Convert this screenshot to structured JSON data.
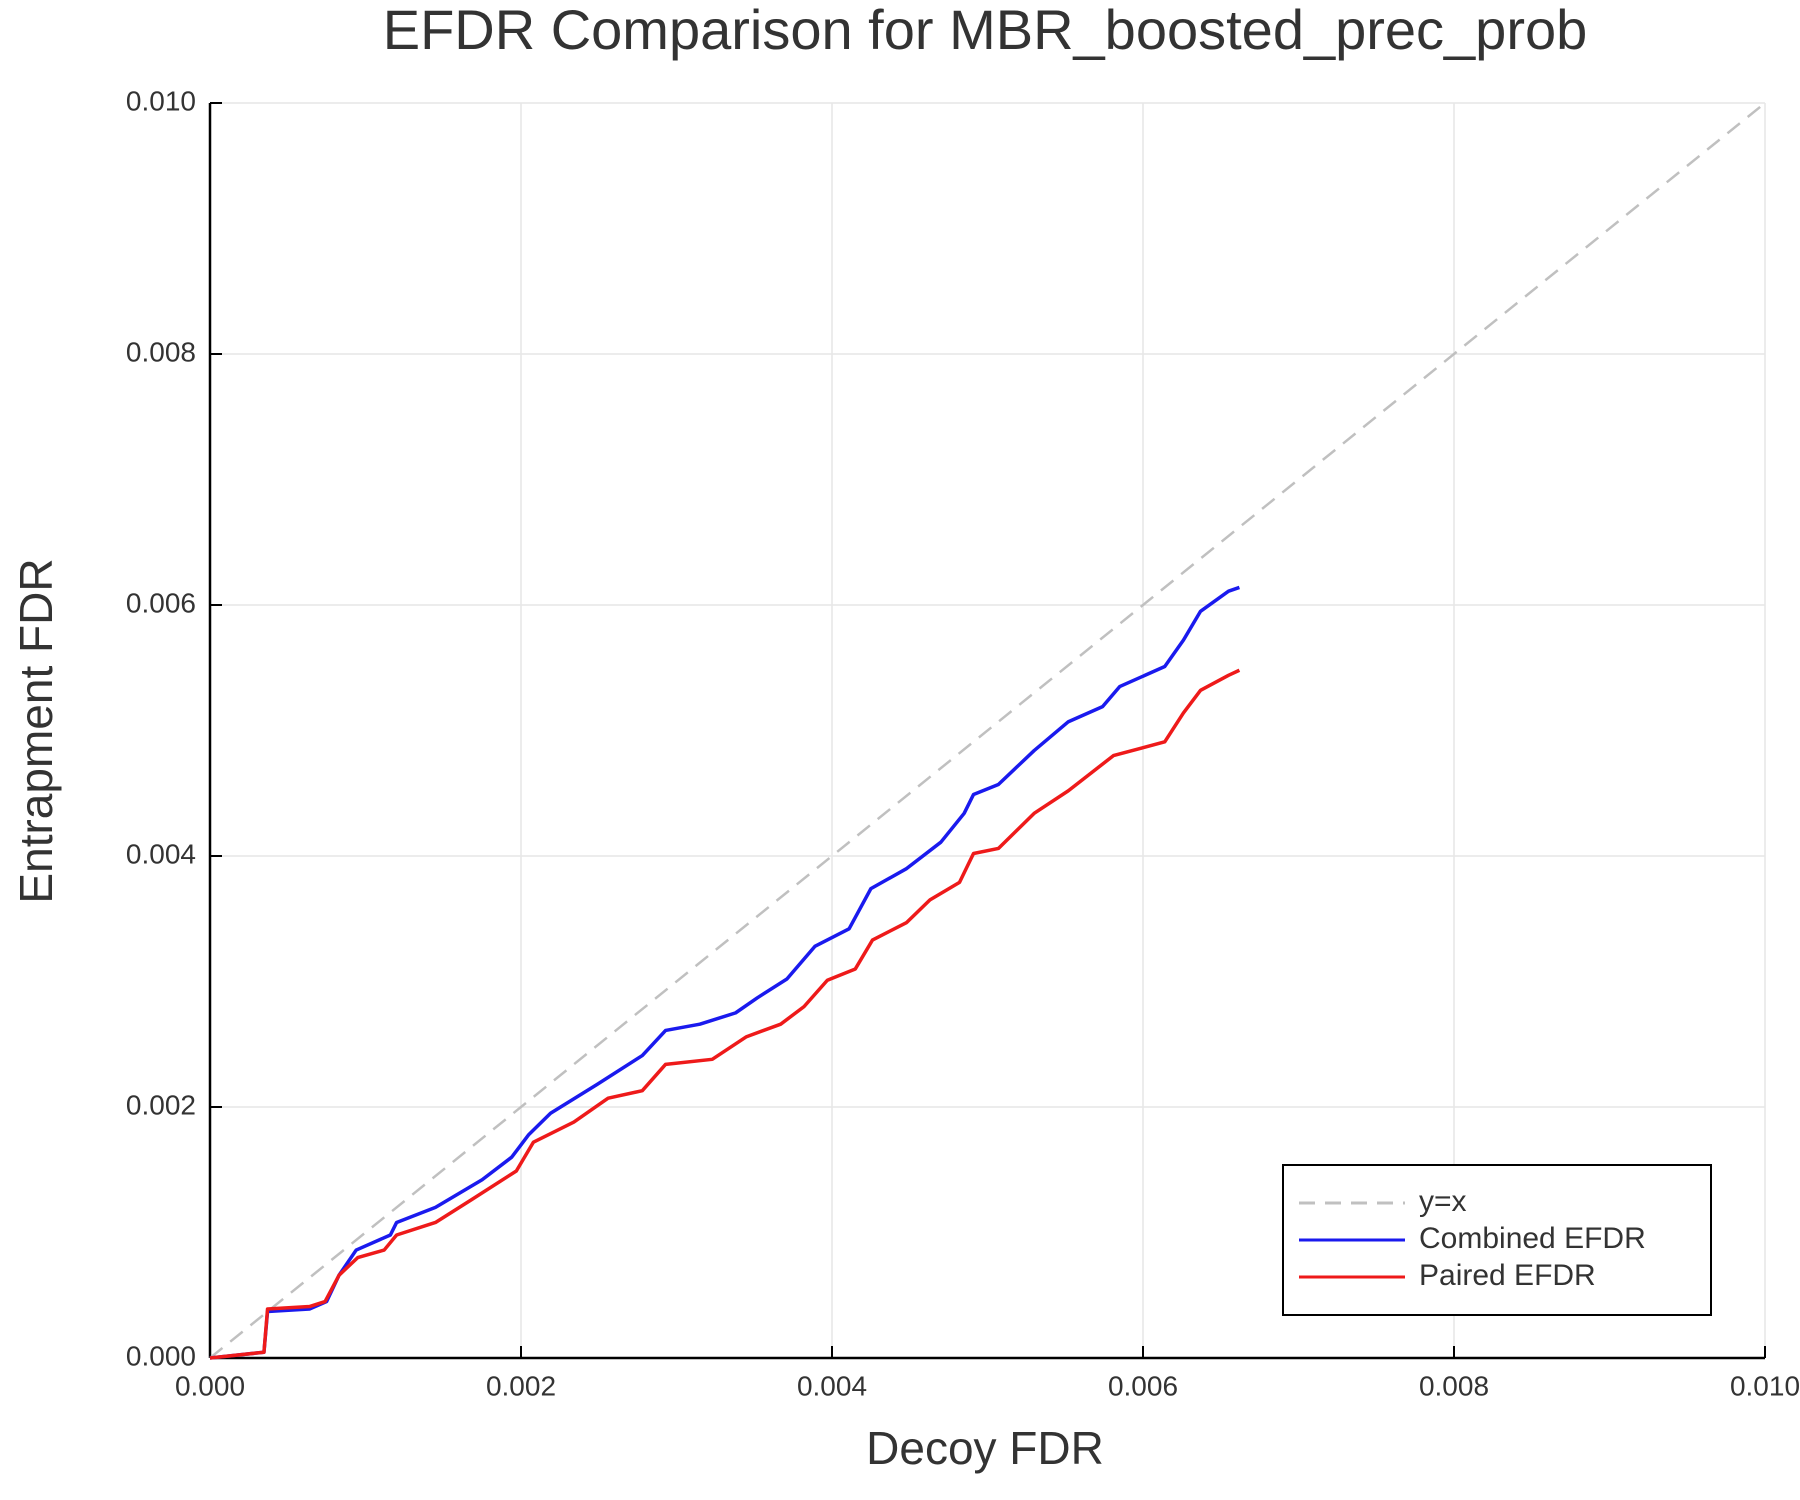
{
  "chart_data": {
    "type": "line",
    "title": "EFDR Comparison for MBR_boosted_prec_prob",
    "xlabel": "Decoy FDR",
    "ylabel": "Entrapment FDR",
    "xlim": [
      0,
      0.01
    ],
    "ylim": [
      0,
      0.01
    ],
    "xticks": [
      {
        "value": 0,
        "label": "0.000"
      },
      {
        "value": 0.002,
        "label": "0.002"
      },
      {
        "value": 0.004,
        "label": "0.004"
      },
      {
        "value": 0.006,
        "label": "0.006"
      },
      {
        "value": 0.008,
        "label": "0.008"
      },
      {
        "value": 0.01,
        "label": "0.010"
      }
    ],
    "yticks": [
      {
        "value": 0,
        "label": "0.000"
      },
      {
        "value": 0.002,
        "label": "0.002"
      },
      {
        "value": 0.004,
        "label": "0.004"
      },
      {
        "value": 0.006,
        "label": "0.006"
      },
      {
        "value": 0.008,
        "label": "0.008"
      },
      {
        "value": 0.01,
        "label": "0.010"
      }
    ],
    "grid": true,
    "legend": "lower right",
    "series": [
      {
        "name": "y=x",
        "color": "#c0c0c0",
        "style": "dashed",
        "x": [
          0,
          0.01
        ],
        "values": [
          0,
          0.01
        ]
      },
      {
        "name": "Combined EFDR",
        "color": "#1a1aee",
        "style": "solid",
        "x": [
          0,
          0.000347,
          0.00037,
          0.00064,
          0.00075,
          0.00083,
          0.00094,
          0.00116,
          0.0012,
          0.00145,
          0.00175,
          0.00194,
          0.00205,
          0.00219,
          0.00249,
          0.00278,
          0.00293,
          0.00315,
          0.00338,
          0.00352,
          0.00371,
          0.00389,
          0.00411,
          0.00425,
          0.00448,
          0.0047,
          0.00485,
          0.00491,
          0.00507,
          0.0053,
          0.00552,
          0.00574,
          0.00585,
          0.00614,
          0.00626,
          0.00637,
          0.00655,
          0.00662
        ],
        "values": [
          0,
          4.6e-05,
          0.00037,
          0.00039,
          0.00045,
          0.00066,
          0.00086,
          0.00098,
          0.00108,
          0.0012,
          0.00142,
          0.0016,
          0.00178,
          0.00195,
          0.00218,
          0.00241,
          0.00261,
          0.00266,
          0.00275,
          0.00287,
          0.00302,
          0.00328,
          0.00342,
          0.00374,
          0.0039,
          0.00411,
          0.00434,
          0.00449,
          0.00457,
          0.00484,
          0.00507,
          0.00519,
          0.00535,
          0.00551,
          0.00572,
          0.00595,
          0.00611,
          0.00614
        ]
      },
      {
        "name": "Paired EFDR",
        "color": "#ee1a1a",
        "style": "solid",
        "x": [
          0,
          0.000347,
          0.00037,
          0.00064,
          0.00074,
          0.00083,
          0.00095,
          0.00112,
          0.0012,
          0.00145,
          0.00168,
          0.00197,
          0.00208,
          0.00234,
          0.00256,
          0.00278,
          0.00293,
          0.00323,
          0.00345,
          0.00367,
          0.00382,
          0.00397,
          0.00415,
          0.00426,
          0.00448,
          0.00463,
          0.00482,
          0.00491,
          0.00507,
          0.0053,
          0.00552,
          0.00581,
          0.00614,
          0.00626,
          0.00637,
          0.00655,
          0.00662
        ],
        "values": [
          0,
          4.6e-05,
          0.00039,
          0.00041,
          0.00045,
          0.00066,
          0.0008,
          0.00086,
          0.00098,
          0.00108,
          0.00126,
          0.00149,
          0.00172,
          0.00188,
          0.00207,
          0.00213,
          0.00234,
          0.00238,
          0.00256,
          0.00266,
          0.0028,
          0.00301,
          0.0031,
          0.00333,
          0.00347,
          0.00365,
          0.00379,
          0.00402,
          0.00406,
          0.00434,
          0.00452,
          0.0048,
          0.00491,
          0.00514,
          0.00532,
          0.00544,
          0.00548
        ]
      }
    ]
  }
}
